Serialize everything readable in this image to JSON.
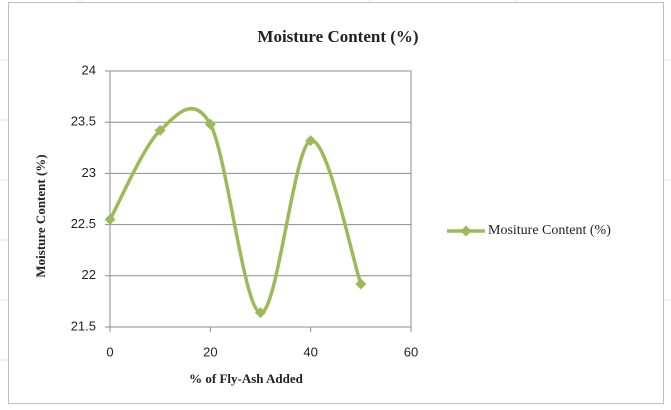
{
  "chart_data": {
    "type": "line",
    "smooth": true,
    "title": "Moisture Content (%)",
    "x_label": "% of Fly-Ash Added",
    "y_label": "Moisture Content (%)",
    "x": [
      0,
      10,
      20,
      30,
      40,
      50
    ],
    "series": [
      {
        "name": "Mositure Content (%)",
        "color": "#9bbb59",
        "values": [
          22.55,
          23.42,
          23.48,
          21.64,
          23.32,
          21.92
        ]
      }
    ],
    "xlim": [
      0,
      60
    ],
    "xticks": [
      0,
      20,
      40,
      60
    ],
    "ylim": [
      21.5,
      24
    ],
    "yticks": [
      21.5,
      22,
      22.5,
      23,
      23.5,
      24
    ],
    "grid": true,
    "legend": "right"
  }
}
